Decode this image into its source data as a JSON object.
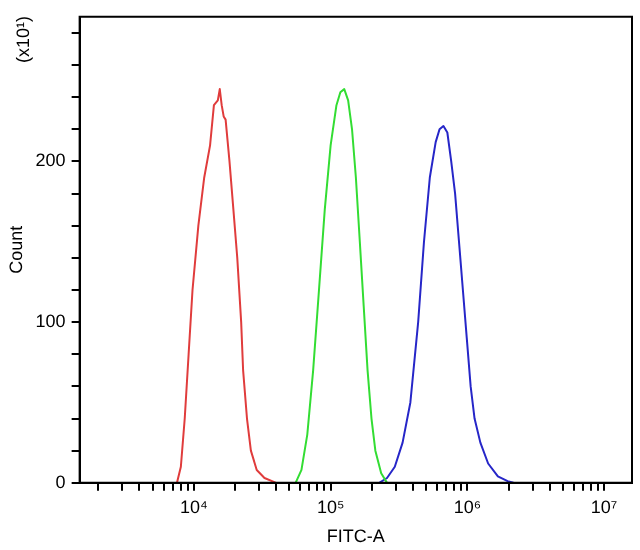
{
  "chart_data": {
    "type": "line",
    "xlabel": "FITC-A",
    "ylabel": "Count",
    "annotations": [
      "(x10¹)"
    ],
    "log": "x",
    "grid": false,
    "legend": false,
    "marker": "none",
    "xlim": [
      1460,
      16000000
    ],
    "xticks": [
      {
        "value": 2000,
        "label": null
      },
      {
        "value": 3000,
        "label": null
      },
      {
        "value": 4000,
        "label": null
      },
      {
        "value": 5000,
        "label": null
      },
      {
        "value": 6000,
        "label": null
      },
      {
        "value": 7000,
        "label": null
      },
      {
        "value": 8000,
        "label": null
      },
      {
        "value": 9000,
        "label": null
      },
      {
        "value": 10000,
        "label": "10⁴"
      },
      {
        "value": 20000,
        "label": null
      },
      {
        "value": 30000,
        "label": null
      },
      {
        "value": 40000,
        "label": null
      },
      {
        "value": 50000,
        "label": null
      },
      {
        "value": 60000,
        "label": null
      },
      {
        "value": 70000,
        "label": null
      },
      {
        "value": 80000,
        "label": null
      },
      {
        "value": 90000,
        "label": null
      },
      {
        "value": 100000,
        "label": "10⁵"
      },
      {
        "value": 200000,
        "label": null
      },
      {
        "value": 300000,
        "label": null
      },
      {
        "value": 400000,
        "label": null
      },
      {
        "value": 500000,
        "label": null
      },
      {
        "value": 600000,
        "label": null
      },
      {
        "value": 700000,
        "label": null
      },
      {
        "value": 800000,
        "label": null
      },
      {
        "value": 900000,
        "label": null
      },
      {
        "value": 1000000,
        "label": "10⁶"
      },
      {
        "value": 2000000,
        "label": null
      },
      {
        "value": 3000000,
        "label": null
      },
      {
        "value": 4000000,
        "label": null
      },
      {
        "value": 5000000,
        "label": null
      },
      {
        "value": 6000000,
        "label": null
      },
      {
        "value": 7000000,
        "label": null
      },
      {
        "value": 8000000,
        "label": null
      },
      {
        "value": 9000000,
        "label": null
      },
      {
        "value": 10000000,
        "label": "10⁷"
      }
    ],
    "ylim": [
      0,
      290
    ],
    "yticks": [
      0,
      {
        "value": 20,
        "label": null
      },
      {
        "value": 40,
        "label": null
      },
      {
        "value": 60,
        "label": null
      },
      {
        "value": 80,
        "label": null
      },
      100,
      {
        "value": 120,
        "label": null
      },
      {
        "value": 140,
        "label": null
      },
      {
        "value": 160,
        "label": null
      },
      {
        "value": 180,
        "label": null
      },
      200,
      {
        "value": 220,
        "label": null
      },
      {
        "value": 240,
        "label": null
      },
      {
        "value": 260,
        "label": null
      },
      {
        "value": 280,
        "label": null
      }
    ],
    "series": [
      {
        "color": "#e03c3c",
        "x": [
          7520,
          8030,
          8570,
          9150,
          9770,
          10780,
          11900,
          13130,
          14010,
          14960,
          15460,
          15970,
          16510,
          17060,
          18210,
          19450,
          20760,
          22170,
          22910,
          24450,
          26110,
          28810,
          32840,
          39970
        ],
        "values": [
          0,
          10,
          40,
          80,
          120,
          160,
          190,
          210,
          235,
          238,
          245,
          235,
          228,
          226,
          200,
          170,
          140,
          100,
          70,
          40,
          20,
          8,
          3,
          0
        ]
      },
      {
        "color": "#33dd33",
        "x": [
          55460,
          61200,
          67500,
          74500,
          82200,
          90600,
          100000,
          110300,
          117800,
          125800,
          134300,
          143400,
          153000,
          163500,
          174500,
          186300,
          199000,
          212400,
          234300,
          258500
        ],
        "values": [
          0,
          8,
          30,
          70,
          120,
          170,
          210,
          235,
          243,
          245,
          238,
          220,
          190,
          150,
          110,
          70,
          40,
          20,
          6,
          0
        ]
      },
      {
        "color": "#2626c8",
        "x": [
          226700,
          258500,
          294700,
          336000,
          383000,
          436800,
          481700,
          531500,
          586500,
          626000,
          668400,
          713800,
          762000,
          813500,
          868700,
          927500,
          990200,
          1057000,
          1129000,
          1245000,
          1419000,
          1672000,
          1970000,
          2173000
        ],
        "values": [
          0,
          3,
          10,
          25,
          50,
          100,
          150,
          190,
          212,
          220,
          222,
          218,
          200,
          180,
          150,
          120,
          90,
          60,
          40,
          25,
          12,
          4,
          1,
          0
        ]
      }
    ]
  }
}
